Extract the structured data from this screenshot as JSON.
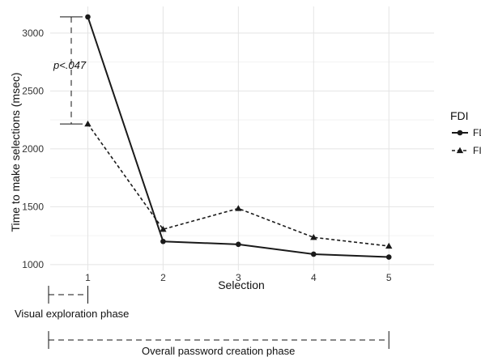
{
  "chart_data": {
    "type": "line",
    "title": "",
    "xlabel": "Selection",
    "ylabel": "Time to make selections (msec)",
    "x": [
      1,
      2,
      3,
      4,
      5
    ],
    "xlim": [
      0.5,
      5.6
    ],
    "ylim": [
      950,
      3230
    ],
    "yticks": [
      1000,
      1500,
      2000,
      2500,
      3000
    ],
    "grid": true,
    "legend": {
      "title": "FDI",
      "position": "right",
      "entries": [
        "FD",
        "FI"
      ]
    },
    "series": [
      {
        "name": "FD",
        "values": [
          3140,
          1200,
          1175,
          1090,
          1065
        ],
        "line": "solid",
        "marker": "circle",
        "color": "#1a1a1a"
      },
      {
        "name": "FI",
        "values": [
          2215,
          1305,
          1485,
          1235,
          1160
        ],
        "line": "dashed",
        "marker": "triangle",
        "color": "#1a1a1a"
      }
    ],
    "annotations": {
      "significance": {
        "label": "p<.047",
        "x": 1,
        "y_from": 2215,
        "y_to": 3140
      },
      "phases": [
        {
          "label": "Visual exploration phase",
          "x_from": 0.5,
          "x_to": 1
        },
        {
          "label": "Overall password creation phase",
          "x_from": 0.5,
          "x_to": 5
        }
      ]
    }
  }
}
